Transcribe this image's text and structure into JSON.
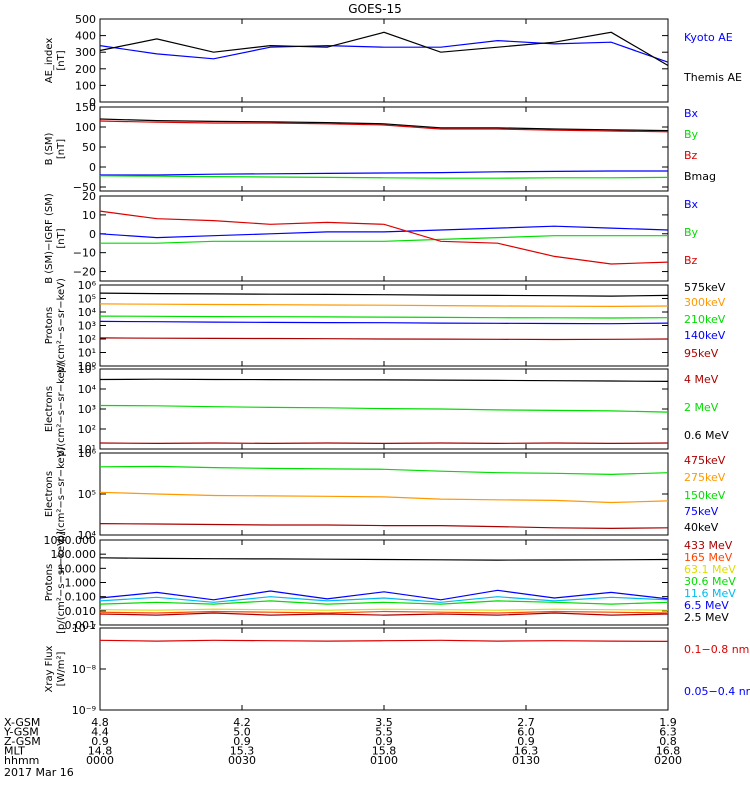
{
  "title": "GOES-15",
  "date_label": "2017 Mar 16",
  "ephemeris": {
    "rows": [
      {
        "label": "X-GSM",
        "values": [
          "4.8",
          "4.2",
          "3.5",
          "2.7",
          "1.9"
        ]
      },
      {
        "label": "Y-GSM",
        "values": [
          "4.4",
          "5.0",
          "5.5",
          "6.0",
          "6.3"
        ]
      },
      {
        "label": "Z-GSM",
        "values": [
          "0.9",
          "0.9",
          "0.9",
          "0.9",
          "0.8"
        ]
      },
      {
        "label": "MLT",
        "values": [
          "14.8",
          "15.3",
          "15.8",
          "16.3",
          "16.8"
        ]
      },
      {
        "label": "hhmm",
        "values": [
          "0000",
          "0030",
          "0100",
          "0130",
          "0200"
        ]
      }
    ]
  },
  "chart_data": [
    {
      "type": "line",
      "ylabel": "AE_index\n[nT]",
      "yscale": "linear",
      "ylim": [
        0,
        500
      ],
      "yticks": [
        0,
        100,
        200,
        300,
        400,
        500
      ],
      "yticklabels": [
        "0",
        "100",
        "200",
        "300",
        "400",
        "500"
      ],
      "x": [
        "00:00",
        "00:12",
        "00:24",
        "00:36",
        "00:48",
        "01:00",
        "01:12",
        "01:24",
        "01:36",
        "01:48",
        "02:00"
      ],
      "series": [
        {
          "name": "Kyoto AE",
          "color": "#0000ff",
          "values": [
            340,
            290,
            260,
            330,
            340,
            330,
            330,
            370,
            350,
            360,
            240
          ]
        },
        {
          "name": "Themis AE",
          "color": "#000000",
          "values": [
            310,
            380,
            300,
            340,
            330,
            420,
            300,
            330,
            360,
            420,
            220
          ]
        }
      ]
    },
    {
      "type": "line",
      "ylabel": "B (SM)\n[nT]",
      "yscale": "linear",
      "ylim": [
        -60,
        150
      ],
      "yticks": [
        -50,
        0,
        50,
        100,
        150
      ],
      "yticklabels": [
        "−50",
        "0",
        "50",
        "100",
        "150"
      ],
      "x": [
        "00:00",
        "00:12",
        "00:24",
        "00:36",
        "00:48",
        "01:00",
        "01:12",
        "01:24",
        "01:36",
        "01:48",
        "02:00"
      ],
      "series": [
        {
          "name": "Bx",
          "color": "#0000ff",
          "values": [
            -20,
            -20,
            -18,
            -17,
            -16,
            -15,
            -14,
            -12,
            -11,
            -10,
            -10
          ]
        },
        {
          "name": "By",
          "color": "#00dd00",
          "values": [
            -22,
            -23,
            -24,
            -25,
            -26,
            -27,
            -28,
            -28,
            -27,
            -27,
            -26
          ]
        },
        {
          "name": "Bz",
          "color": "#dd0000",
          "values": [
            115,
            112,
            110,
            110,
            108,
            105,
            95,
            95,
            92,
            90,
            88
          ]
        },
        {
          "name": "Bmag",
          "color": "#000000",
          "values": [
            120,
            116,
            114,
            113,
            111,
            108,
            98,
            98,
            95,
            93,
            91
          ]
        }
      ]
    },
    {
      "type": "line",
      "ylabel": "B (SM)−IGRF (SM)\n[nT]",
      "yscale": "linear",
      "ylim": [
        -25,
        20
      ],
      "yticks": [
        -20,
        -10,
        0,
        10,
        20
      ],
      "yticklabels": [
        "−20",
        "−10",
        "0",
        "10",
        "20"
      ],
      "x": [
        "00:00",
        "00:12",
        "00:24",
        "00:36",
        "00:48",
        "01:00",
        "01:12",
        "01:24",
        "01:36",
        "01:48",
        "02:00"
      ],
      "series": [
        {
          "name": "Bx",
          "color": "#0000ff",
          "values": [
            0,
            -2,
            -1,
            0,
            1,
            1,
            2,
            3,
            4,
            3,
            2
          ]
        },
        {
          "name": "By",
          "color": "#00dd00",
          "values": [
            -5,
            -5,
            -4,
            -4,
            -4,
            -4,
            -3,
            -2,
            -1,
            -1,
            -1
          ]
        },
        {
          "name": "Bz",
          "color": "#dd0000",
          "values": [
            12,
            8,
            7,
            5,
            6,
            5,
            -4,
            -5,
            -12,
            -16,
            -15
          ]
        }
      ]
    },
    {
      "type": "line",
      "ylabel": "Protons\np/(cm²−s−sr−keV)",
      "yscale": "log",
      "ylim": [
        1,
        1000000
      ],
      "yticks": [
        1,
        10,
        100,
        1000,
        10000,
        100000,
        1000000
      ],
      "yticklabels": [
        "10⁰",
        "10¹",
        "10²",
        "10³",
        "10⁴",
        "10⁵",
        "10⁶"
      ],
      "x": [
        "00:00",
        "00:12",
        "00:24",
        "00:36",
        "00:48",
        "01:00",
        "01:12",
        "01:24",
        "01:36",
        "01:48",
        "02:00"
      ],
      "series": [
        {
          "name": "575keV",
          "color": "#000000",
          "values": [
            250000,
            230000,
            220000,
            210000,
            200000,
            190000,
            180000,
            170000,
            160000,
            150000,
            170000
          ]
        },
        {
          "name": "300keV",
          "color": "#ff9900",
          "values": [
            40000,
            38000,
            36000,
            35000,
            33000,
            32000,
            30000,
            28000,
            27000,
            26000,
            28000
          ]
        },
        {
          "name": "210keV",
          "color": "#00dd00",
          "values": [
            5000,
            4800,
            4600,
            4500,
            4300,
            4200,
            4000,
            3800,
            3700,
            3600,
            3800
          ]
        },
        {
          "name": "140keV",
          "color": "#0000ff",
          "values": [
            2000,
            1900,
            1800,
            1700,
            1650,
            1600,
            1500,
            1450,
            1400,
            1350,
            1500
          ]
        },
        {
          "name": "95keV",
          "color": "#aa0000",
          "values": [
            120,
            115,
            110,
            108,
            105,
            100,
            98,
            95,
            92,
            95,
            100
          ]
        }
      ]
    },
    {
      "type": "line",
      "ylabel": "Electrons\np/(cm²−s−sr−keV)",
      "yscale": "log",
      "ylim": [
        10,
        100000
      ],
      "yticks": [
        10,
        100,
        1000,
        10000,
        100000
      ],
      "yticklabels": [
        "10¹",
        "10²",
        "10³",
        "10⁴",
        "10⁵"
      ],
      "x": [
        "00:00",
        "00:12",
        "00:24",
        "00:36",
        "00:48",
        "01:00",
        "01:12",
        "01:24",
        "01:36",
        "01:48",
        "02:00"
      ],
      "series": [
        {
          "name": "4 MeV",
          "color": "#aa0000",
          "values": [
            20,
            19,
            20,
            19,
            20,
            19,
            20,
            19,
            20,
            19,
            20
          ]
        },
        {
          "name": "2 MeV",
          "color": "#00dd00",
          "values": [
            1500,
            1450,
            1300,
            1200,
            1150,
            1050,
            1000,
            900,
            850,
            800,
            700
          ]
        },
        {
          "name": "0.6 MeV",
          "color": "#000000",
          "values": [
            30000,
            31000,
            30000,
            29500,
            29000,
            28500,
            28000,
            27000,
            26000,
            25000,
            24000
          ]
        }
      ]
    },
    {
      "type": "line",
      "ylabel": "Electrons\np/(cm²−s−sr−keV)",
      "yscale": "log",
      "ylim": [
        10000,
        1000000
      ],
      "yticks": [
        10000,
        100000,
        1000000
      ],
      "yticklabels": [
        "10⁴",
        "10⁵",
        "10⁶"
      ],
      "x": [
        "00:00",
        "00:12",
        "00:24",
        "00:36",
        "00:48",
        "01:00",
        "01:12",
        "01:24",
        "01:36",
        "01:48",
        "02:00"
      ],
      "series": [
        {
          "name": "475keV",
          "color": "#aa0000",
          "values": [
            19000,
            18500,
            18000,
            17500,
            17500,
            17000,
            17000,
            16000,
            15000,
            14500,
            15000
          ]
        },
        {
          "name": "275keV",
          "color": "#ff9900",
          "values": [
            110000,
            100000,
            92000,
            90000,
            88000,
            85000,
            75000,
            72000,
            70000,
            62000,
            68000
          ]
        },
        {
          "name": "150keV",
          "color": "#00dd00",
          "values": [
            460000,
            470000,
            440000,
            420000,
            410000,
            400000,
            360000,
            330000,
            320000,
            300000,
            330000
          ]
        },
        {
          "name": "75keV",
          "color": "#0000ff"
        },
        {
          "name": "40keV",
          "color": "#000000"
        }
      ]
    },
    {
      "type": "line",
      "ylabel": "Protons\n[p/(cm²−s−sr−keV)]",
      "yscale": "log",
      "ylim": [
        0.001,
        1000
      ],
      "yticks": [
        0.001,
        0.01,
        0.1,
        1,
        10,
        100,
        1000
      ],
      "yticklabels": [
        "0.001",
        "0.010",
        "0.100",
        "1.000",
        "10.000",
        "100.000",
        "1000.000"
      ],
      "x": [
        "00:00",
        "00:12",
        "00:24",
        "00:36",
        "00:48",
        "01:00",
        "01:12",
        "01:24",
        "01:36",
        "01:48",
        "02:00"
      ],
      "series": [
        {
          "name": "433 MeV",
          "color": "#aa0000",
          "values": [
            0.006,
            0.005,
            0.007,
            0.005,
            0.006,
            0.005,
            0.006,
            0.005,
            0.007,
            0.005,
            0.006
          ]
        },
        {
          "name": "165 MeV",
          "color": "#ff4400",
          "values": [
            0.008,
            0.007,
            0.009,
            0.008,
            0.007,
            0.009,
            0.008,
            0.007,
            0.009,
            0.008,
            0.007
          ]
        },
        {
          "name": "63.1 MeV",
          "color": "#dddd00",
          "values": [
            0.012,
            0.011,
            0.013,
            0.012,
            0.011,
            0.013,
            0.012,
            0.011,
            0.013,
            0.012,
            0.011
          ]
        },
        {
          "name": "30.6 MeV",
          "color": "#00dd00",
          "values": [
            0.03,
            0.04,
            0.03,
            0.05,
            0.03,
            0.04,
            0.03,
            0.05,
            0.04,
            0.03,
            0.04
          ]
        },
        {
          "name": "11.6 MeV",
          "color": "#00bbee",
          "values": [
            0.05,
            0.09,
            0.04,
            0.1,
            0.05,
            0.08,
            0.04,
            0.1,
            0.05,
            0.09,
            0.06
          ]
        },
        {
          "name": "6.5 MeV",
          "color": "#0000ff",
          "values": [
            0.08,
            0.2,
            0.06,
            0.25,
            0.07,
            0.22,
            0.06,
            0.28,
            0.08,
            0.2,
            0.07
          ]
        },
        {
          "name": "2.5 MeV",
          "color": "#000000",
          "values": [
            55,
            50,
            48,
            46,
            44,
            42,
            40,
            38,
            39,
            40,
            42
          ]
        }
      ]
    },
    {
      "type": "line",
      "ylabel": "Xray Flux\n[W/m²]",
      "yscale": "log",
      "ylim": [
        1e-09,
        1e-07
      ],
      "yticks": [
        1e-09,
        1e-08,
        1e-07
      ],
      "yticklabels": [
        "10⁻⁹",
        "10⁻⁸",
        "10⁻⁷"
      ],
      "x": [
        "00:00",
        "00:12",
        "00:24",
        "00:36",
        "00:48",
        "01:00",
        "01:12",
        "01:24",
        "01:36",
        "01:48",
        "02:00"
      ],
      "series": [
        {
          "name": "0.1−0.8 nm",
          "color": "#dd0000",
          "values": [
            5e-08,
            4.8e-08,
            5e-08,
            4.9e-08,
            4.8e-08,
            4.9e-08,
            5e-08,
            4.8e-08,
            4.9e-08,
            4.8e-08,
            4.7e-08
          ]
        },
        {
          "name": "0.05−0.4 nm",
          "color": "#0000ff"
        }
      ]
    }
  ]
}
